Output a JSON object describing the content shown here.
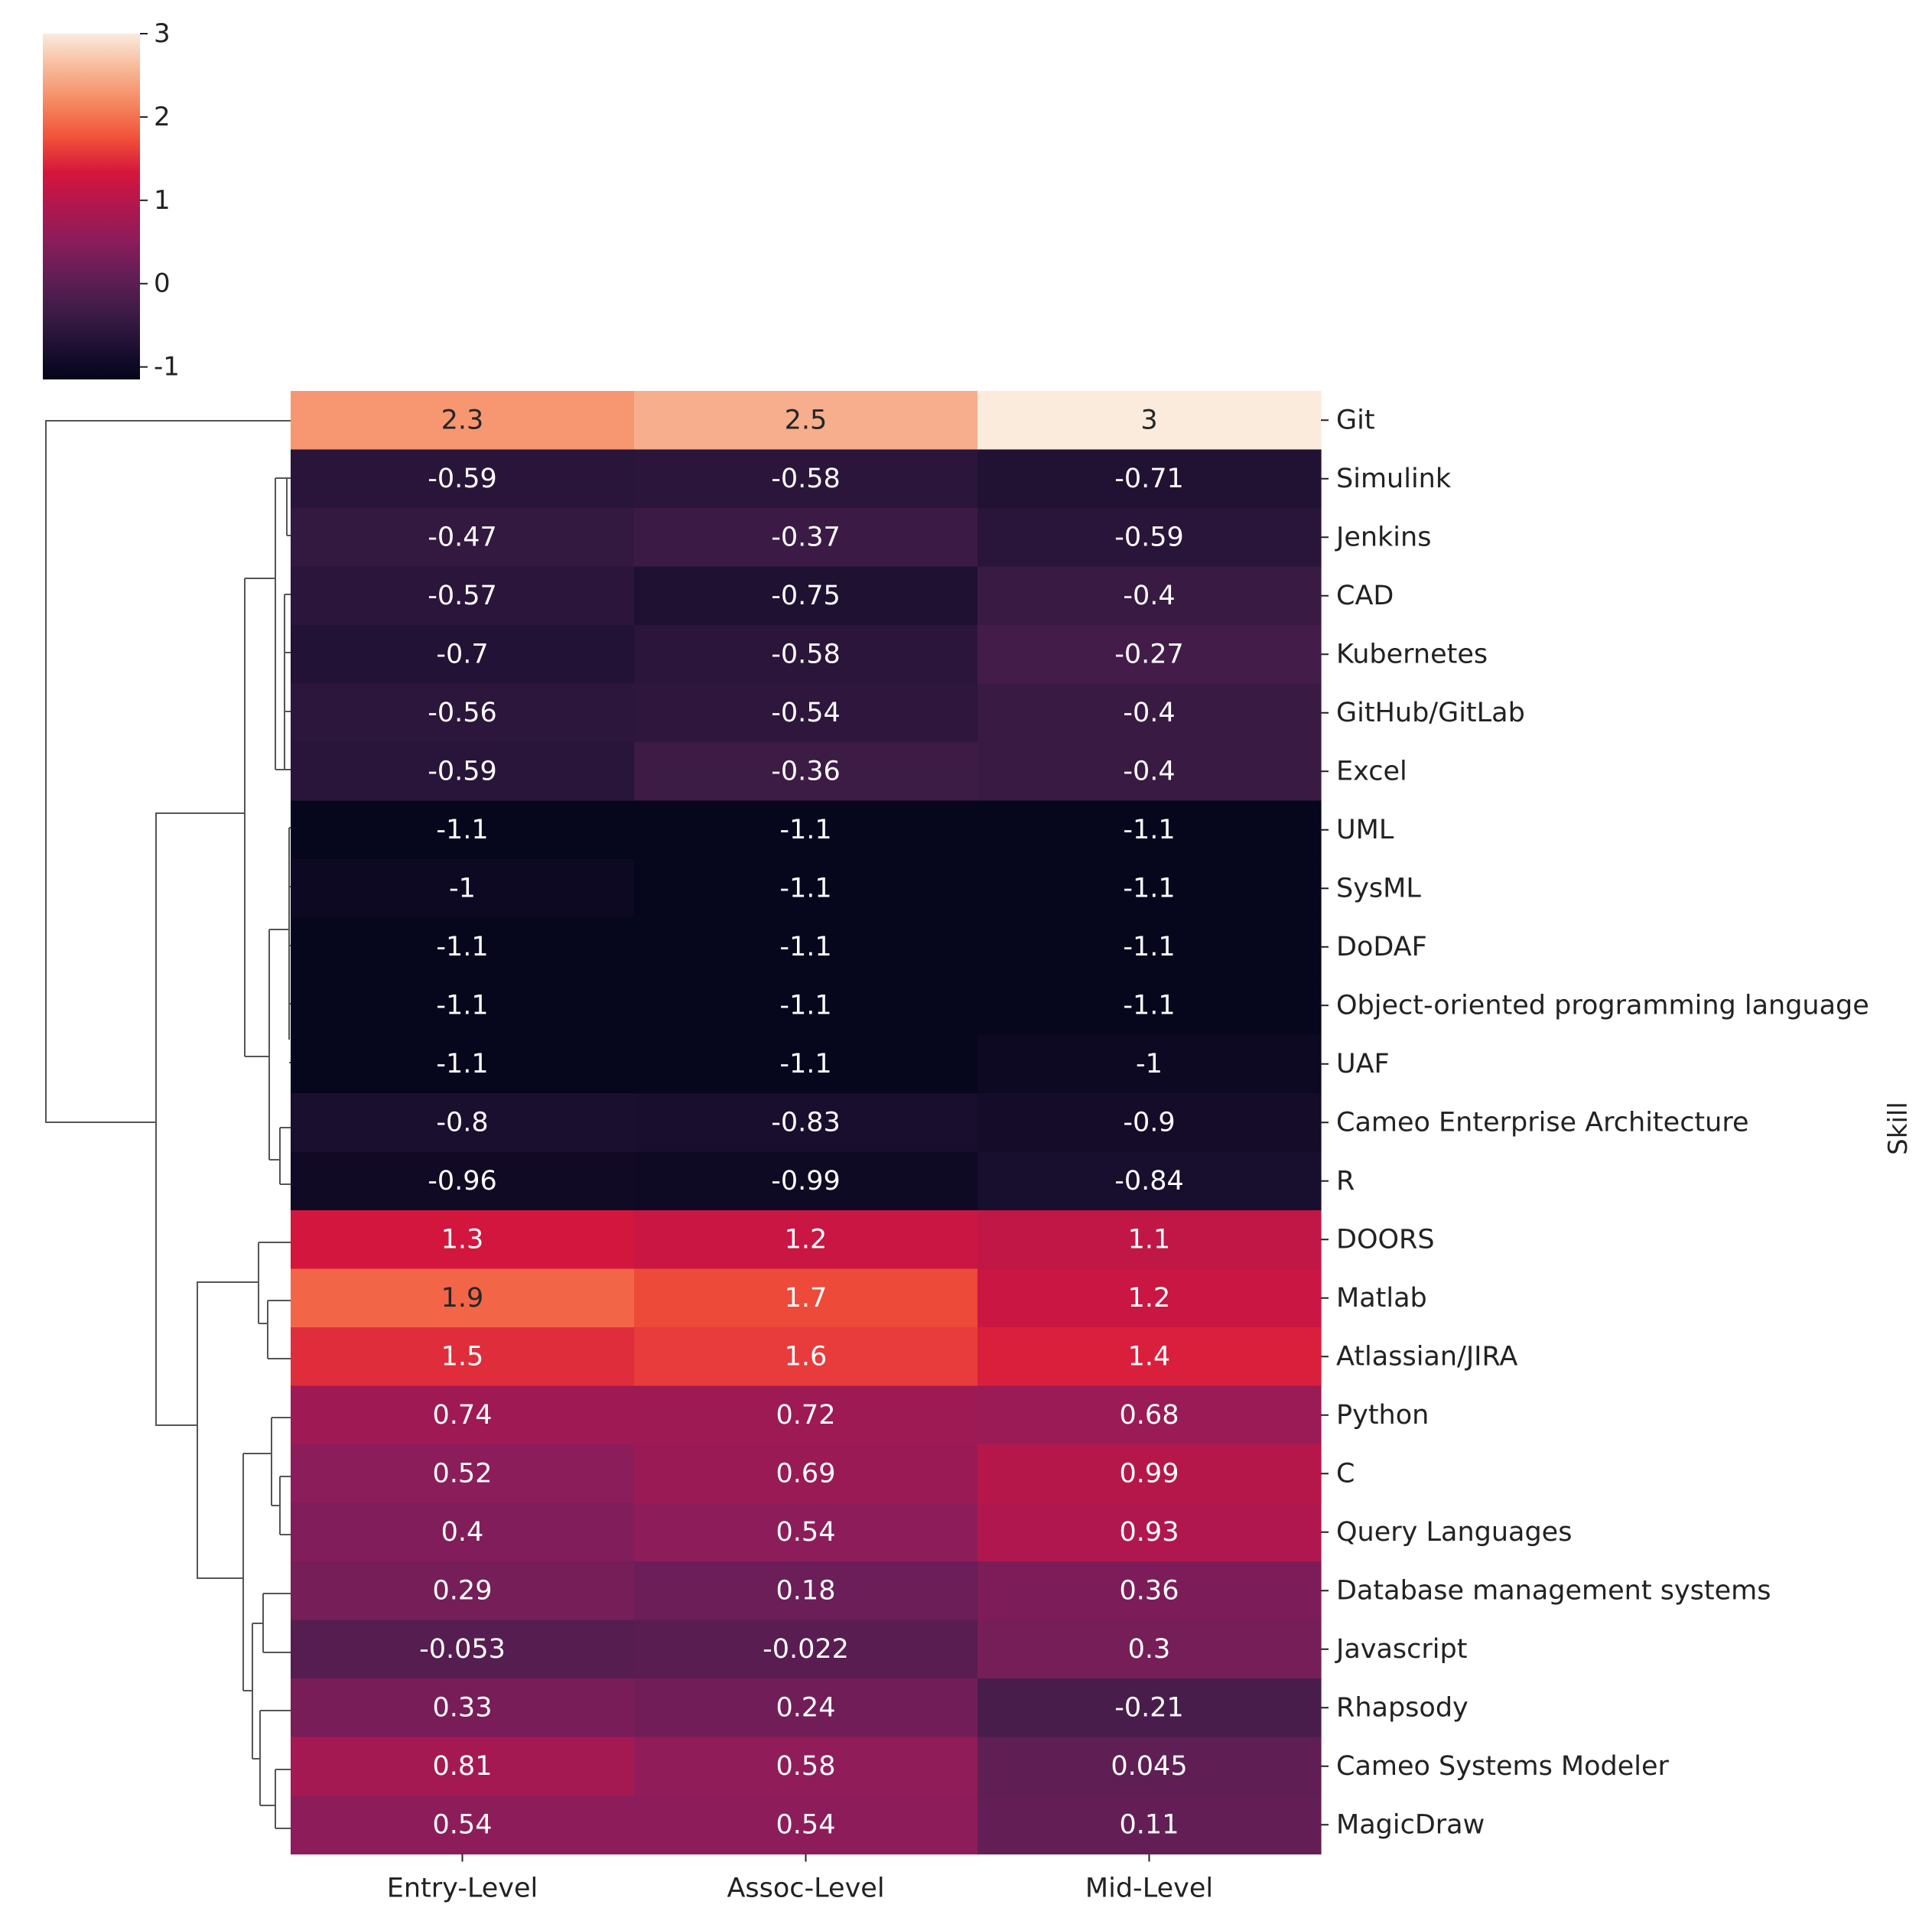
{
  "chart_data": {
    "type": "heatmap",
    "title": "",
    "xlabel": "",
    "ylabel": "Skill",
    "columns": [
      "Entry-Level",
      "Assoc-Level",
      "Mid-Level"
    ],
    "rows": [
      {
        "label": "Git",
        "values": [
          2.3,
          2.5,
          3
        ]
      },
      {
        "label": "Simulink",
        "values": [
          -0.59,
          -0.58,
          -0.71
        ]
      },
      {
        "label": "Jenkins",
        "values": [
          -0.47,
          -0.37,
          -0.59
        ]
      },
      {
        "label": "CAD",
        "values": [
          -0.57,
          -0.75,
          -0.4
        ]
      },
      {
        "label": "Kubernetes",
        "values": [
          -0.7,
          -0.58,
          -0.27
        ]
      },
      {
        "label": "GitHub/GitLab",
        "values": [
          -0.56,
          -0.54,
          -0.4
        ]
      },
      {
        "label": "Excel",
        "values": [
          -0.59,
          -0.36,
          -0.4
        ]
      },
      {
        "label": "UML",
        "values": [
          -1.1,
          -1.1,
          -1.1
        ]
      },
      {
        "label": "SysML",
        "values": [
          -1,
          -1.1,
          -1.1
        ]
      },
      {
        "label": "DoDAF",
        "values": [
          -1.1,
          -1.1,
          -1.1
        ]
      },
      {
        "label": "Object-oriented programming language",
        "values": [
          -1.1,
          -1.1,
          -1.1
        ]
      },
      {
        "label": "UAF",
        "values": [
          -1.1,
          -1.1,
          -1
        ]
      },
      {
        "label": "Cameo Enterprise Architecture",
        "values": [
          -0.8,
          -0.83,
          -0.9
        ]
      },
      {
        "label": "R",
        "values": [
          -0.96,
          -0.99,
          -0.84
        ]
      },
      {
        "label": "DOORS",
        "values": [
          1.3,
          1.2,
          1.1
        ]
      },
      {
        "label": "Matlab",
        "values": [
          1.9,
          1.7,
          1.2
        ]
      },
      {
        "label": "Atlassian/JIRA",
        "values": [
          1.5,
          1.6,
          1.4
        ]
      },
      {
        "label": "Python",
        "values": [
          0.74,
          0.72,
          0.68
        ]
      },
      {
        "label": "C",
        "values": [
          0.52,
          0.69,
          0.99
        ]
      },
      {
        "label": "Query Languages",
        "values": [
          0.4,
          0.54,
          0.93
        ]
      },
      {
        "label": "Database management systems",
        "values": [
          0.29,
          0.18,
          0.36
        ]
      },
      {
        "label": "Javascript",
        "values": [
          -0.053,
          -0.022,
          0.3
        ]
      },
      {
        "label": "Rhapsody",
        "values": [
          0.33,
          0.24,
          -0.21
        ]
      },
      {
        "label": "Cameo Systems Modeler",
        "values": [
          0.81,
          0.58,
          0.045
        ]
      },
      {
        "label": "MagicDraw",
        "values": [
          0.54,
          0.54,
          0.11
        ]
      }
    ],
    "colorbar": {
      "range": [
        -1.15,
        3.0
      ],
      "ticks": [
        3,
        2,
        1,
        0,
        -1
      ],
      "tick_labels": [
        "3",
        "2",
        "1",
        "0",
        "-1"
      ],
      "colormap": "rocket"
    },
    "dendrogram": "row clustering (left side)"
  }
}
